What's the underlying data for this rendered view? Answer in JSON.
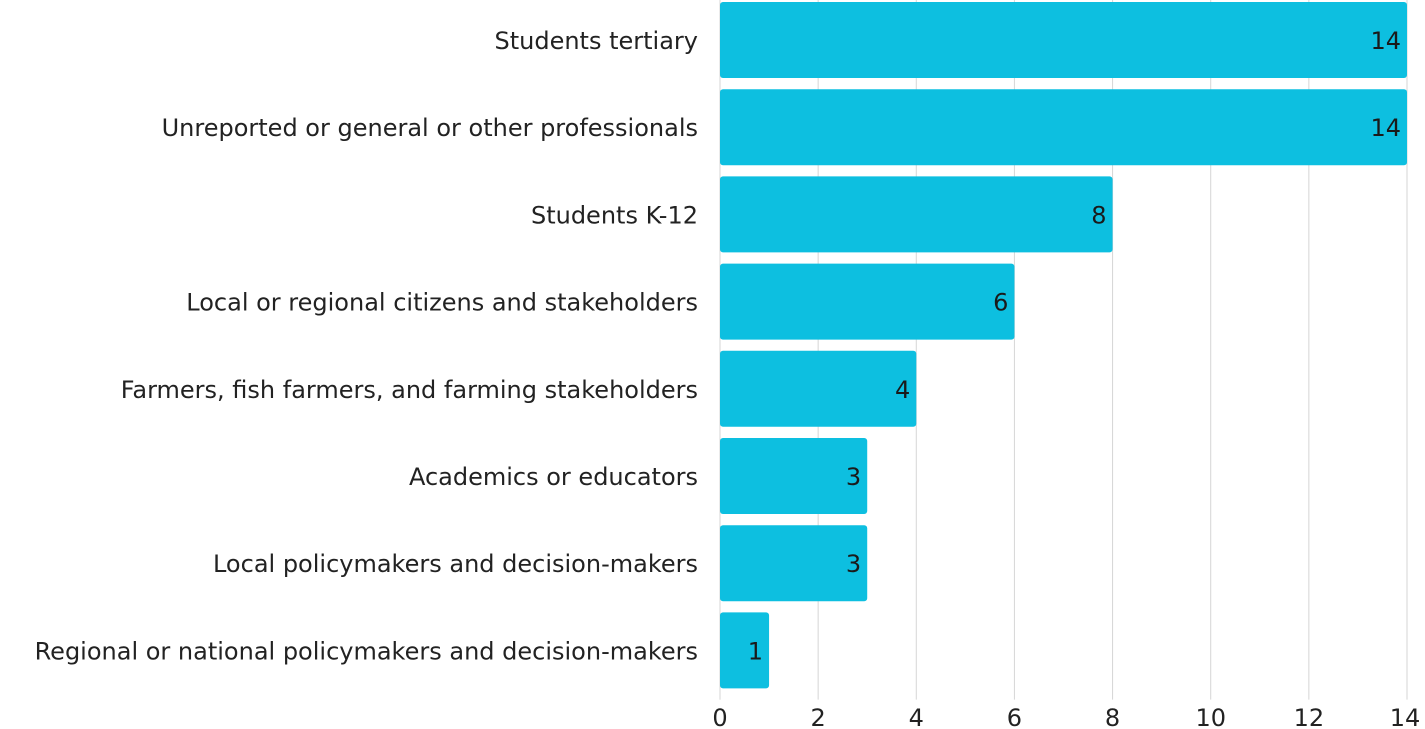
{
  "chart_data": {
    "type": "bar",
    "orientation": "horizontal",
    "categories": [
      "Students tertiary",
      "Unreported or general or other professionals",
      "Students K-12",
      "Local or regional citizens and stakeholders",
      "Farmers, fish farmers, and farming stakeholders",
      "Academics or educators",
      "Local policymakers and decision-makers",
      "Regional or national policymakers and decision-makers"
    ],
    "values": [
      14,
      14,
      8,
      6,
      4,
      3,
      3,
      1
    ],
    "data_labels": [
      "14",
      "14",
      "8",
      "6",
      "4",
      "3",
      "3",
      "1"
    ],
    "xlim": [
      0,
      14
    ],
    "x_ticks": [
      0,
      2,
      4,
      6,
      8,
      10,
      12,
      14
    ],
    "x_tick_labels": [
      "0",
      "2",
      "4",
      "6",
      "8",
      "10",
      "12",
      "14"
    ],
    "title": "",
    "xlabel": "",
    "ylabel": "",
    "grid": "vertical",
    "legend": "none",
    "colors": {
      "bar": "#0dbfe0",
      "grid": "#d6d6d6",
      "text": "#222222"
    }
  }
}
